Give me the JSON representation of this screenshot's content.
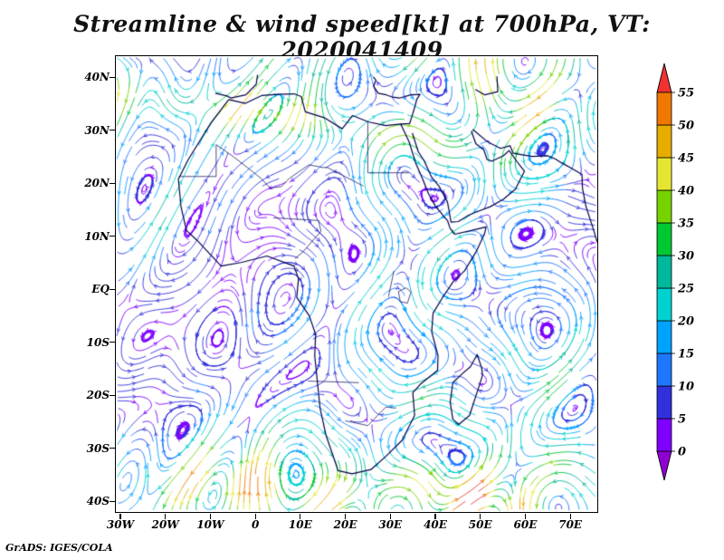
{
  "title": "Streamline & wind speed[kt] at 700hPa, VT: 2020041409",
  "footer": "GrADS: IGES/COLA",
  "chart_data": {
    "type": "heatmap",
    "subtype": "streamline_vector_field",
    "title": "Streamline & wind speed[kt] at 700hPa, VT: 2020041409",
    "variable": "wind speed",
    "units": "kt",
    "pressure_level": "700hPa",
    "valid_time": "2020041409",
    "x_tick_labels": [
      "30W",
      "20W",
      "10W",
      "0",
      "10E",
      "20E",
      "30E",
      "40E",
      "50E",
      "60E",
      "70E"
    ],
    "y_tick_labels": [
      "40S",
      "30S",
      "20S",
      "10S",
      "EQ",
      "10N",
      "20N",
      "30N",
      "40N"
    ],
    "lon_range": [
      -31,
      76
    ],
    "lat_range": [
      -42,
      44
    ],
    "grid": false,
    "legend_position": "right-colorbar",
    "colorbar": {
      "levels": [
        0,
        5,
        10,
        15,
        20,
        25,
        30,
        35,
        40,
        45,
        50,
        55
      ],
      "colors": [
        "#9100d3",
        "#7f00ff",
        "#3030dc",
        "#1e78ff",
        "#00a2ff",
        "#00d2d2",
        "#00b89b",
        "#00c832",
        "#78d200",
        "#e6e632",
        "#e6ac00",
        "#f07800",
        "#f03232"
      ]
    },
    "map": {
      "coastlines": [
        [
          [
            -5.9,
            35.8
          ],
          [
            -2.2,
            35.1
          ],
          [
            1.5,
            36.6
          ],
          [
            5,
            36.8
          ],
          [
            8.6,
            36.9
          ],
          [
            10.2,
            36.4
          ],
          [
            11.1,
            33.5
          ],
          [
            15.3,
            32.4
          ],
          [
            19.3,
            30.3
          ],
          [
            21.6,
            32.8
          ],
          [
            25.1,
            31.6
          ],
          [
            29,
            30.9
          ],
          [
            32.3,
            31.2
          ],
          [
            34.2,
            27.8
          ],
          [
            35.6,
            23.9
          ],
          [
            37.2,
            20.8
          ],
          [
            38.5,
            18
          ],
          [
            40.1,
            15.6
          ],
          [
            42.7,
            13
          ],
          [
            43.3,
            11.5
          ],
          [
            44.3,
            10.4
          ],
          [
            48,
            11.1
          ],
          [
            51.3,
            11.8
          ],
          [
            50.9,
            10.4
          ],
          [
            49,
            7
          ],
          [
            46.5,
            3.5
          ],
          [
            44,
            1.5
          ],
          [
            41.5,
            -1.7
          ],
          [
            39.5,
            -4.5
          ],
          [
            39.2,
            -8
          ],
          [
            40.6,
            -12.5
          ],
          [
            40.5,
            -15.3
          ],
          [
            36.8,
            -17.8
          ],
          [
            35,
            -19.5
          ],
          [
            35.4,
            -23.8
          ],
          [
            32.6,
            -28.5
          ],
          [
            29,
            -31.5
          ],
          [
            25.7,
            -34
          ],
          [
            21.5,
            -34.8
          ],
          [
            18.4,
            -34.2
          ],
          [
            15.7,
            -27.5
          ],
          [
            14.4,
            -22.5
          ],
          [
            13.2,
            -12.5
          ],
          [
            13.4,
            -8.5
          ],
          [
            12,
            -5
          ],
          [
            9.2,
            -1.5
          ],
          [
            9.6,
            2
          ],
          [
            8.6,
            4.4
          ],
          [
            2.6,
            6.3
          ],
          [
            -3,
            5.1
          ],
          [
            -7.6,
            4.4
          ],
          [
            -13,
            9.3
          ],
          [
            -15.3,
            11.1
          ],
          [
            -16.5,
            15.5
          ],
          [
            -17.1,
            20.8
          ],
          [
            -14.9,
            24.5
          ],
          [
            -9.8,
            31.5
          ],
          [
            -5.9,
            35.8
          ]
        ],
        [
          [
            43.3,
            -21.3
          ],
          [
            43.9,
            -17.6
          ],
          [
            46,
            -15.9
          ],
          [
            47.8,
            -14.6
          ],
          [
            49.3,
            -12.3
          ],
          [
            50.3,
            -14.8
          ],
          [
            50.5,
            -16.2
          ],
          [
            49.6,
            -18.6
          ],
          [
            47.6,
            -23.8
          ],
          [
            45.2,
            -25.5
          ],
          [
            43.9,
            -24.5
          ],
          [
            43.3,
            -21.3
          ]
        ],
        [
          [
            34.9,
            29.5
          ],
          [
            36.2,
            26
          ],
          [
            37.5,
            24.3
          ],
          [
            39.1,
            21.3
          ],
          [
            40.8,
            19.5
          ],
          [
            42.7,
            16.5
          ],
          [
            43.5,
            12.7
          ],
          [
            45.1,
            12.8
          ],
          [
            47.4,
            14
          ],
          [
            49.1,
            14.6
          ],
          [
            52.2,
            15.6
          ],
          [
            55.1,
            17
          ],
          [
            57.8,
            18.9
          ],
          [
            59.8,
            22.3
          ],
          [
            58.5,
            23.7
          ],
          [
            56.4,
            26.2
          ],
          [
            55.1,
            25.2
          ],
          [
            52.6,
            24.2
          ],
          [
            51.5,
            24.5
          ],
          [
            50.8,
            26.3
          ],
          [
            49,
            27.5
          ],
          [
            48,
            29.9
          ]
        ],
        [
          [
            32.3,
            31.2
          ],
          [
            34.3,
            31.3
          ],
          [
            34.9,
            32.9
          ],
          [
            35.5,
            34.6
          ],
          [
            35.9,
            35.9
          ],
          [
            36.6,
            36.8
          ],
          [
            34.6,
            36.7
          ],
          [
            32,
            36.1
          ],
          [
            30.4,
            36.3
          ],
          [
            29.1,
            36.7
          ],
          [
            27.3,
            37
          ],
          [
            26.3,
            38.3
          ],
          [
            26.8,
            39.5
          ],
          [
            26.2,
            40.1
          ]
        ],
        [
          [
            -8.9,
            37
          ],
          [
            -6.3,
            36.5
          ],
          [
            -5.4,
            36.1
          ],
          [
            -2.1,
            36.7
          ],
          [
            0.2,
            38.7
          ],
          [
            0.5,
            40.5
          ]
        ],
        [
          [
            48.9,
            37.7
          ],
          [
            51,
            36.7
          ],
          [
            53.9,
            37.3
          ],
          [
            53.7,
            40.2
          ]
        ],
        [
          [
            48.3,
            30.2
          ],
          [
            51.5,
            27.9
          ],
          [
            54.5,
            26.6
          ],
          [
            56.6,
            27.1
          ],
          [
            57.3,
            25.7
          ],
          [
            61.5,
            25.1
          ],
          [
            65,
            25.2
          ],
          [
            66.7,
            24.6
          ],
          [
            68.2,
            23.8
          ],
          [
            70.2,
            22.9
          ],
          [
            72.6,
            21.7
          ],
          [
            72.7,
            19.1
          ],
          [
            73.5,
            15.6
          ],
          [
            75.1,
            11.4
          ],
          [
            76,
            8.9
          ]
        ]
      ],
      "borders": [
        [
          [
            25,
            31.6
          ],
          [
            25,
            22
          ]
        ],
        [
          [
            25,
            22
          ],
          [
            34.1,
            22
          ]
        ],
        [
          [
            16,
            23
          ],
          [
            24,
            19.5
          ]
        ],
        [
          [
            -8.7,
            27.3
          ],
          [
            -4.8,
            25
          ],
          [
            1.2,
            21
          ],
          [
            3.3,
            19.1
          ],
          [
            5.8,
            19.4
          ],
          [
            7.5,
            20.9
          ],
          [
            11.9,
            23.5
          ],
          [
            15,
            23
          ],
          [
            16,
            23
          ]
        ],
        [
          [
            -17,
            21.3
          ],
          [
            -8.7,
            21.3
          ],
          [
            -8.7,
            27.3
          ]
        ],
        [
          [
            4,
            13.5
          ],
          [
            14,
            13
          ]
        ],
        [
          [
            14,
            13
          ],
          [
            14.6,
            11
          ],
          [
            10.5,
            7
          ],
          [
            8.8,
            5.8
          ]
        ],
        [
          [
            11.7,
            -17.3
          ],
          [
            23,
            -17.6
          ]
        ],
        [
          [
            20,
            -24.8
          ],
          [
            25,
            -25.7
          ],
          [
            29,
            -22.2
          ],
          [
            31.3,
            -22.4
          ]
        ],
        [
          [
            29.6,
            -1.4
          ],
          [
            30.8,
            3.5
          ]
        ],
        [
          [
            31.8,
            -0.4
          ],
          [
            33.5,
            0.3
          ],
          [
            34.6,
            -0.5
          ],
          [
            33.8,
            -2.6
          ],
          [
            32.2,
            -2.3
          ],
          [
            31.8,
            -0.4
          ]
        ]
      ]
    }
  }
}
